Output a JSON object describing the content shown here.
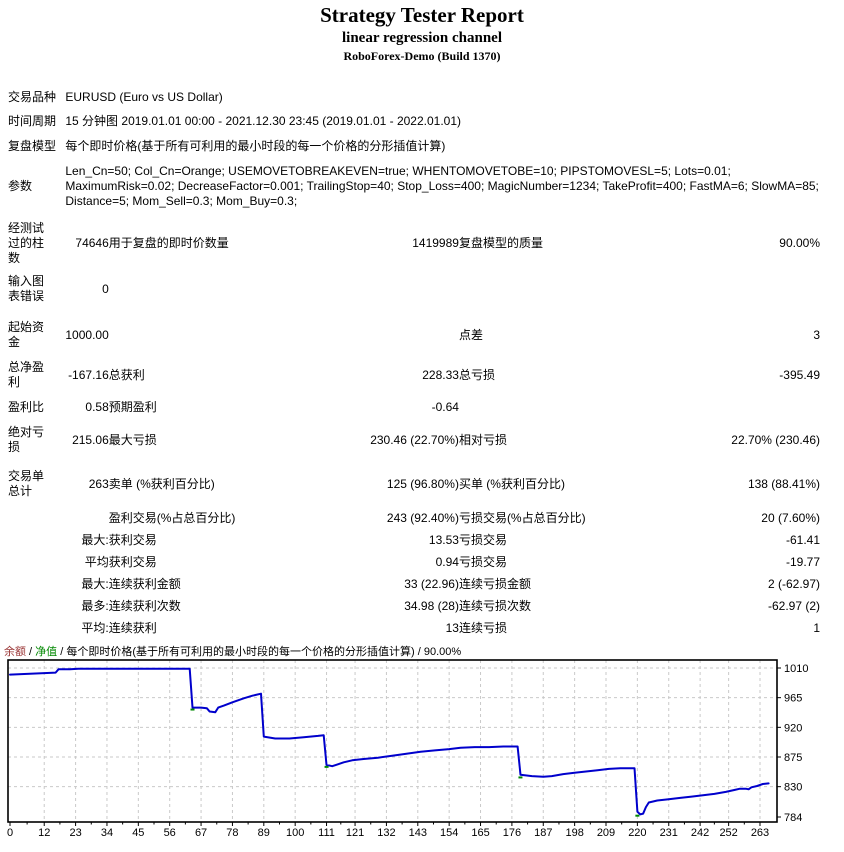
{
  "header": {
    "title": "Strategy Tester Report",
    "subtitle": "linear regression channel",
    "server": "RoboForex-Demo (Build 1370)"
  },
  "table": {
    "rows": [
      {
        "merged": true,
        "label": "交易品种",
        "value": "EURUSD (Euro vs US Dollar)",
        "gap": 2
      },
      {
        "merged": true,
        "label": "时间周期",
        "value": "15 分钟图 2019.01.01 00:00 - 2021.12.30 23:45 (2019.01.01 - 2022.01.01)",
        "gap": 9
      },
      {
        "merged": true,
        "label": "复盘模型",
        "value": "每个即时价格(基于所有可利用的最小时段的每一个价格的分形插值计算)",
        "gap": 10
      },
      {
        "merged": true,
        "label": "参数",
        "value": "Len_Cn=50; Col_Cn=Orange; USEMOVETOBREAKEVEN=true; WHENTOMOVETOBE=10; PIPSTOMOVESL=5; Lots=0.01; MaximumRisk=0.02; DecreaseFactor=0.001; TrailingStop=40; Stop_Loss=400; MagicNumber=1234; TakeProfit=400; FastMA=6; SlowMA=85; Distance=5; Mom_Sell=0.3; Mom_Buy=0.3;",
        "gap": 10
      },
      {
        "c": [
          "经测试\n过的柱\n数",
          "74646",
          "用于复盘的即时价数量",
          "1419989",
          "复盘模型的质量",
          "90.00%"
        ],
        "gap": 12
      },
      {
        "c": [
          "输入图\n表错误",
          "0",
          "",
          "",
          "",
          ""
        ],
        "gap": 8
      },
      {
        "c": [
          "起始资\n金",
          "1000.00",
          "",
          "",
          "点差",
          "3"
        ],
        "gap": 16
      },
      {
        "c": [
          "总净盈\n利",
          "-167.16",
          "总获利",
          "228.33",
          "总亏损",
          "-395.49"
        ],
        "gap": 10
      },
      {
        "c": [
          "盈利比",
          "0.58",
          "预期盈利",
          "-0.64",
          "",
          ""
        ],
        "gap": 10
      },
      {
        "c": [
          "绝对亏\n损",
          "215.06",
          "最大亏损",
          "230.46 (22.70%)",
          "相对亏损",
          "22.70% (230.46)"
        ],
        "gap": 10
      },
      {
        "c": [
          "交易单\n总计",
          "263",
          "卖单 (%获利百分比)",
          "125 (96.80%)",
          "买单 (%获利百分比)",
          "138 (88.41%)"
        ],
        "gap": 14
      },
      {
        "c": [
          "",
          "",
          "盈利交易(%占总百分比)",
          "243 (92.40%)",
          "亏损交易(%占总百分比)",
          "20 (7.60%)"
        ],
        "gap": 12
      },
      {
        "c": [
          "",
          "最大:",
          "获利交易",
          "13.53",
          "亏损交易",
          "-61.41"
        ],
        "gap": 7
      },
      {
        "c": [
          "",
          "平均",
          "获利交易",
          "0.94",
          "亏损交易",
          "-19.77"
        ],
        "gap": 7
      },
      {
        "c": [
          "",
          "最大:",
          "连续获利金额",
          "33 (22.96)",
          "连续亏损金额",
          "2 (-62.97)"
        ],
        "gap": 7
      },
      {
        "c": [
          "",
          "最多:",
          "连续获利次数",
          "34.98 (28)",
          "连续亏损次数",
          "-62.97 (2)"
        ],
        "gap": 7
      },
      {
        "c": [
          "",
          "平均:",
          "连续获利",
          "13",
          "连续亏损",
          "1"
        ],
        "gap": 7
      }
    ]
  },
  "chart_data": {
    "type": "line",
    "legend": {
      "balance": "余额",
      "equity": "净值",
      "separator": " / ",
      "model": "每个即时价格(基于所有可利用的最小时段的每一个价格的分形插值计算)",
      "quality": "90.00%"
    },
    "colors": {
      "balance": "#0000CC",
      "equity": "#008800",
      "balance_label": "#993333",
      "grid": "#c9c9c9",
      "axis": "#000000"
    },
    "xlim": [
      0,
      263
    ],
    "ylim": [
      784,
      1010
    ],
    "x_ticks": [
      0,
      12,
      23,
      34,
      45,
      56,
      67,
      78,
      89,
      100,
      111,
      121,
      132,
      143,
      154,
      165,
      176,
      187,
      198,
      209,
      220,
      231,
      242,
      252,
      263
    ],
    "y_ticks": [
      1010,
      965,
      920,
      875,
      830,
      784
    ],
    "y_gridlines": [
      1010,
      965,
      920,
      875,
      830
    ],
    "series": [
      {
        "name": "余额",
        "points": [
          [
            0,
            1000
          ],
          [
            6,
            1001
          ],
          [
            11,
            1002
          ],
          [
            16,
            1003
          ],
          [
            17,
            1008
          ],
          [
            21,
            1008
          ],
          [
            24,
            1009
          ],
          [
            60,
            1009
          ],
          [
            63,
            1009
          ],
          [
            64,
            950
          ],
          [
            67,
            950
          ],
          [
            69,
            949
          ],
          [
            70,
            944
          ],
          [
            72,
            943
          ],
          [
            73,
            950
          ],
          [
            75,
            953
          ],
          [
            78,
            958
          ],
          [
            82,
            964
          ],
          [
            85,
            968
          ],
          [
            88,
            971
          ],
          [
            89,
            906
          ],
          [
            93,
            903
          ],
          [
            98,
            903
          ],
          [
            103,
            905
          ],
          [
            108,
            907
          ],
          [
            110,
            908
          ],
          [
            111,
            863
          ],
          [
            113,
            861
          ],
          [
            115,
            864
          ],
          [
            117,
            867
          ],
          [
            120,
            870
          ],
          [
            124,
            872
          ],
          [
            129,
            874
          ],
          [
            134,
            877
          ],
          [
            139,
            880
          ],
          [
            144,
            883
          ],
          [
            149,
            885
          ],
          [
            154,
            887
          ],
          [
            158,
            889
          ],
          [
            163,
            890
          ],
          [
            168,
            890
          ],
          [
            173,
            891
          ],
          [
            178,
            891
          ],
          [
            179,
            848
          ],
          [
            183,
            846
          ],
          [
            187,
            845
          ],
          [
            190,
            846
          ],
          [
            194,
            849
          ],
          [
            198,
            851
          ],
          [
            202,
            853
          ],
          [
            206,
            855
          ],
          [
            210,
            857
          ],
          [
            214,
            858
          ],
          [
            219,
            858
          ],
          [
            220,
            792
          ],
          [
            221,
            788
          ],
          [
            222,
            789
          ],
          [
            223,
            799
          ],
          [
            224,
            806
          ],
          [
            227,
            809
          ],
          [
            231,
            811
          ],
          [
            235,
            813
          ],
          [
            239,
            815
          ],
          [
            243,
            817
          ],
          [
            247,
            819
          ],
          [
            251,
            822
          ],
          [
            254,
            825
          ],
          [
            256,
            827
          ],
          [
            258,
            827
          ],
          [
            259,
            826
          ],
          [
            260,
            829
          ],
          [
            262,
            831
          ],
          [
            264,
            834
          ],
          [
            266,
            835
          ]
        ]
      },
      {
        "name": "净值",
        "marks": [
          [
            64,
            947
          ],
          [
            111,
            860
          ],
          [
            179,
            844
          ],
          [
            220,
            786
          ]
        ]
      }
    ]
  }
}
